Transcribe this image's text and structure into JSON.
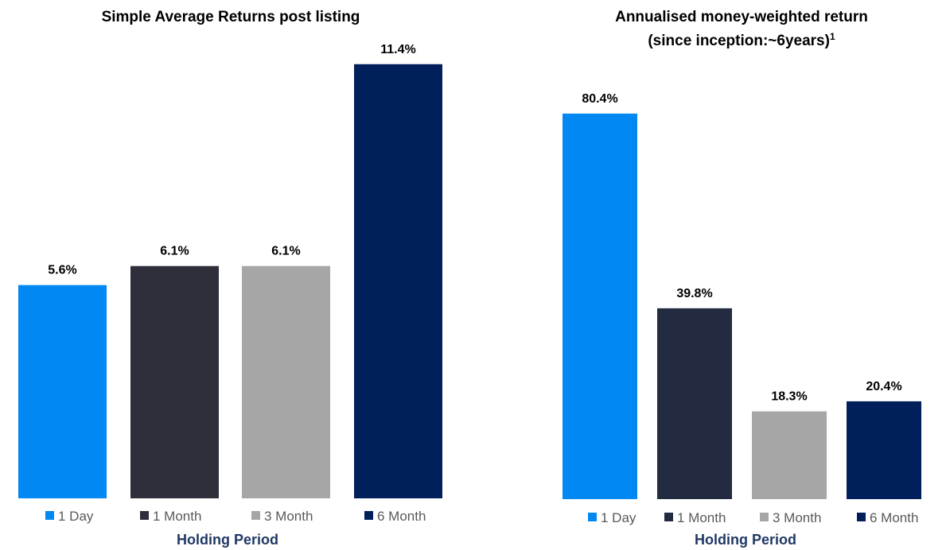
{
  "colors": {
    "1 Day": "#0288f2",
    "1 Month": "#2f2f3b",
    "3 Month": "#a6a6a6",
    "6 Month": "#001f5b",
    "1 Month (chart 2)": "#222b40",
    "axis_title": "#1f3864",
    "legend_text": "#595959"
  },
  "chart_data": [
    {
      "type": "bar",
      "title": "Simple Average Returns post listing",
      "subtitle": "",
      "xlabel": "Holding Period",
      "ylabel": "",
      "categories": [
        "1 Day",
        "1 Month",
        "3 Month",
        "6 Month"
      ],
      "values": [
        5.6,
        6.1,
        6.1,
        11.4
      ],
      "data_labels": [
        "5.6%",
        "6.1%",
        "6.1%",
        "11.4%"
      ],
      "ylim": [
        0,
        12
      ],
      "grid": false,
      "legend_position": "bottom"
    },
    {
      "type": "bar",
      "title": "Annualised money-weighted return",
      "subtitle": "(since inception:~6years)",
      "subtitle_superscript": "1",
      "xlabel": "Holding Period",
      "ylabel": "",
      "categories": [
        "1 Day",
        "1 Month",
        "3 Month",
        "6 Month"
      ],
      "values": [
        80.4,
        39.8,
        18.3,
        20.4
      ],
      "data_labels": [
        "80.4%",
        "39.8%",
        "18.3%",
        "20.4%"
      ],
      "ylim": [
        0,
        90
      ],
      "grid": false,
      "legend_position": "bottom"
    }
  ]
}
